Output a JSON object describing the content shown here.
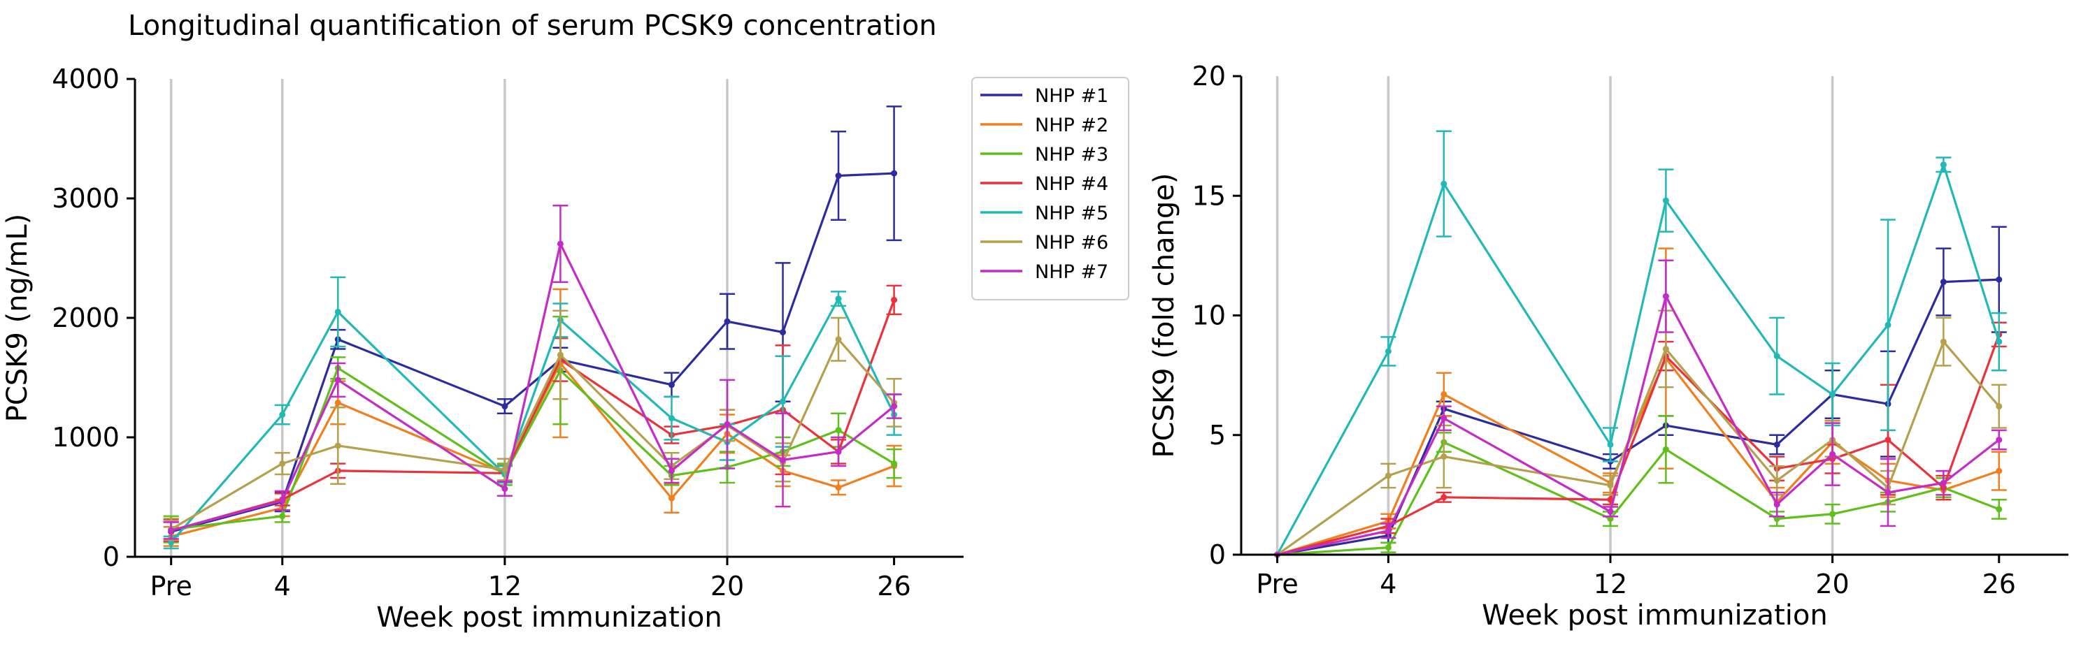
{
  "figure_title": "Longitudinal quantification of serum PCSK9 concentration",
  "series_names": [
    "NHP #1",
    "NHP #2",
    "NHP #3",
    "NHP #4",
    "NHP #5",
    "NHP #6",
    "NHP #7"
  ],
  "series_colors": [
    "#2b2ca0",
    "#f07f1f",
    "#5fbf1b",
    "#e8333a",
    "#22b9b5",
    "#b4a04d",
    "#c42cc6"
  ],
  "chart_data": [
    {
      "type": "line",
      "title": "Longitudinal quantification of serum PCSK9 concentration",
      "xlabel": "Week post immunization",
      "ylabel": "PCSK9 (ng/mL)",
      "xlim": [
        -1.3,
        28.5
      ],
      "ylim": [
        0,
        4000
      ],
      "x_tick_values": [
        0,
        4,
        12,
        20,
        26
      ],
      "x_tick_labels": [
        "Pre",
        "4",
        "12",
        "20",
        "26"
      ],
      "y_ticks": [
        0,
        1000,
        2000,
        3000,
        4000
      ],
      "y_tick_labels": [
        "0",
        "1000",
        "2000",
        "3000",
        "4000"
      ],
      "vlines": [
        0,
        4,
        12,
        20
      ],
      "x": [
        0,
        4,
        6,
        12,
        14,
        18,
        20,
        22,
        24,
        26
      ],
      "legend": "upper right, outside the plot area",
      "series": [
        {
          "name": "NHP #1",
          "values": [
            210,
            460,
            1820,
            1260,
            1650,
            1440,
            1970,
            1880,
            3190,
            3210
          ],
          "errors": [
            80,
            80,
            80,
            60,
            100,
            100,
            230,
            580,
            370,
            560
          ]
        },
        {
          "name": "NHP #2",
          "values": [
            170,
            410,
            1290,
            700,
            1620,
            490,
            1030,
            720,
            580,
            760
          ],
          "errors": [
            80,
            70,
            180,
            70,
            620,
            120,
            160,
            130,
            60,
            170
          ]
        },
        {
          "name": "NHP #3",
          "values": [
            230,
            340,
            1580,
            690,
            1560,
            680,
            750,
            880,
            1060,
            780
          ],
          "errors": [
            110,
            50,
            90,
            90,
            450,
            80,
            130,
            120,
            140,
            120
          ]
        },
        {
          "name": "NHP #4",
          "values": [
            220,
            480,
            720,
            700,
            1650,
            1020,
            1100,
            1230,
            880,
            2150
          ],
          "errors": [
            90,
            50,
            60,
            60,
            180,
            70,
            130,
            540,
            100,
            120
          ]
        },
        {
          "name": "NHP #5",
          "values": [
            120,
            1190,
            2050,
            690,
            1980,
            1160,
            960,
            1300,
            2160,
            1190
          ],
          "errors": [
            50,
            80,
            290,
            70,
            140,
            180,
            150,
            380,
            60,
            170
          ]
        },
        {
          "name": "NHP #6",
          "values": [
            230,
            780,
            930,
            730,
            1690,
            760,
            1100,
            790,
            1820,
            1290
          ],
          "errors": [
            90,
            90,
            320,
            90,
            370,
            110,
            130,
            160,
            180,
            200
          ]
        },
        {
          "name": "NHP #7",
          "values": [
            220,
            470,
            1480,
            570,
            2620,
            720,
            1110,
            810,
            880,
            1260
          ],
          "errors": [
            70,
            80,
            140,
            60,
            320,
            100,
            370,
            390,
            120,
            100
          ]
        }
      ]
    },
    {
      "type": "line",
      "title": "",
      "xlabel": "Week post immunization",
      "ylabel": "PCSK9 (fold change)",
      "xlim": [
        -1.3,
        28.5
      ],
      "ylim": [
        0,
        20
      ],
      "x_tick_values": [
        0,
        4,
        12,
        20,
        26
      ],
      "x_tick_labels": [
        "Pre",
        "4",
        "12",
        "20",
        "26"
      ],
      "y_ticks": [
        0,
        5,
        10,
        15,
        20
      ],
      "y_tick_labels": [
        "0",
        "5",
        "10",
        "15",
        "20"
      ],
      "vlines": [
        0,
        4,
        12,
        20
      ],
      "x": [
        0,
        4,
        6,
        12,
        14,
        18,
        20,
        22,
        24,
        26
      ],
      "series": [
        {
          "name": "NHP #1",
          "values": [
            0,
            0.8,
            6.1,
            3.9,
            5.4,
            4.6,
            6.7,
            6.3,
            11.4,
            11.5
          ],
          "errors": [
            0,
            0.3,
            0.3,
            0.3,
            0.4,
            0.4,
            1.0,
            2.2,
            1.4,
            2.2
          ]
        },
        {
          "name": "NHP #2",
          "values": [
            0,
            1.4,
            6.7,
            3.0,
            8.2,
            2.2,
            4.7,
            3.1,
            2.7,
            3.5
          ],
          "errors": [
            0,
            0.3,
            0.9,
            0.4,
            4.6,
            0.6,
            0.9,
            0.7,
            0.3,
            0.8
          ]
        },
        {
          "name": "NHP #3",
          "values": [
            0,
            0.3,
            4.7,
            1.5,
            4.4,
            1.5,
            1.7,
            2.2,
            2.8,
            1.9
          ],
          "errors": [
            0,
            0.2,
            0.4,
            0.3,
            1.4,
            0.3,
            0.4,
            0.4,
            0.4,
            0.4
          ]
        },
        {
          "name": "NHP #4",
          "values": [
            0,
            1.2,
            2.4,
            2.3,
            8.3,
            3.6,
            4.0,
            4.8,
            2.8,
            9.2
          ],
          "errors": [
            0,
            0.3,
            0.2,
            0.2,
            0.6,
            0.5,
            0.6,
            2.3,
            0.5,
            0.5
          ]
        },
        {
          "name": "NHP #5",
          "values": [
            0,
            8.5,
            15.5,
            4.6,
            14.8,
            8.3,
            6.7,
            9.6,
            16.3,
            8.9
          ],
          "errors": [
            0,
            0.6,
            2.2,
            0.7,
            1.3,
            1.6,
            1.3,
            4.4,
            0.3,
            1.2
          ]
        },
        {
          "name": "NHP #6",
          "values": [
            0,
            3.3,
            4.1,
            2.9,
            8.6,
            3.1,
            4.8,
            2.8,
            8.9,
            6.2
          ],
          "errors": [
            0,
            0.5,
            1.3,
            0.4,
            1.6,
            0.6,
            0.7,
            0.7,
            1.0,
            0.9
          ]
        },
        {
          "name": "NHP #7",
          "values": [
            0,
            1.0,
            5.7,
            1.8,
            10.8,
            2.1,
            4.2,
            2.6,
            3.0,
            4.8
          ],
          "errors": [
            0,
            0.3,
            0.5,
            0.2,
            1.5,
            0.5,
            1.3,
            1.4,
            0.5,
            0.4
          ]
        }
      ]
    }
  ]
}
